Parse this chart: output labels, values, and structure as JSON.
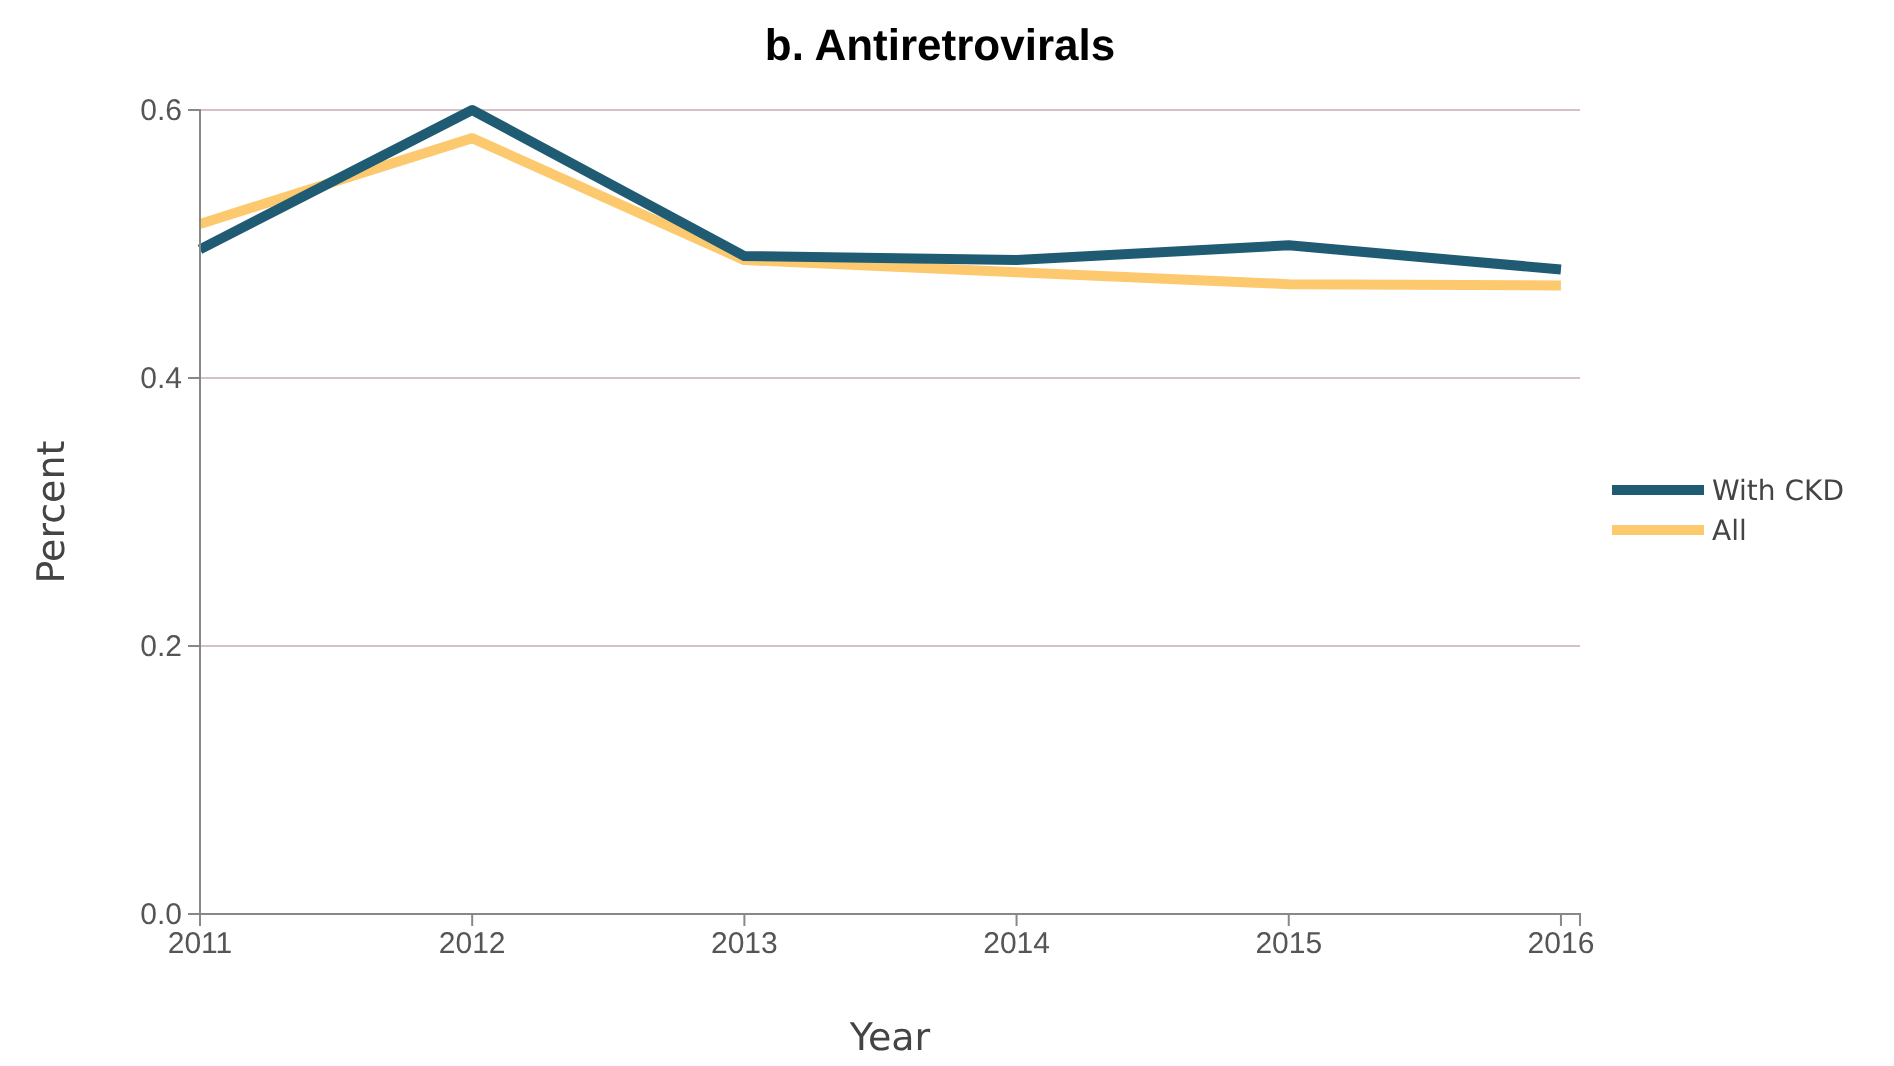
{
  "chart_data": {
    "type": "line",
    "title": "b. Antiretrovirals",
    "xlabel": "Year",
    "ylabel": "Percent",
    "x": [
      2011,
      2012,
      2013,
      2014,
      2015,
      2016
    ],
    "xlim": [
      2011,
      2016.07
    ],
    "xticks": [
      2011,
      2012,
      2013,
      2014,
      2015,
      2016
    ],
    "ylim": [
      0,
      0.6
    ],
    "yticks": [
      {
        "value": 0,
        "label": "0.0"
      },
      0.2,
      0.4,
      0.6
    ],
    "grid": "y",
    "legend": "right",
    "marker": "none",
    "line_style": "solid",
    "series": [
      {
        "name": "With CKD",
        "color": "#1f5c73",
        "values": [
          0.496,
          0.6,
          0.491,
          0.488,
          0.499,
          0.481
        ]
      },
      {
        "name": "All",
        "color": "#fdc96f",
        "values": [
          0.515,
          0.579,
          0.488,
          0.479,
          0.47,
          0.469
        ]
      }
    ]
  }
}
